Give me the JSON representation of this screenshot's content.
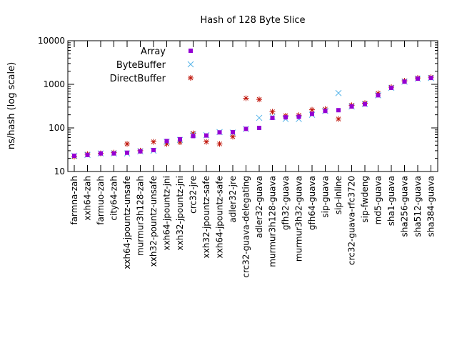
{
  "chart_data": {
    "type": "scatter",
    "title": "Hash of 128 Byte Slice",
    "xlabel": "",
    "ylabel": "ns/hash (log scale)",
    "yscale": "log",
    "ylim": [
      10,
      10000
    ],
    "yticks": [
      "10",
      "100",
      "1000",
      "10000"
    ],
    "grid": false,
    "legend_position": "top-left",
    "categories": [
      "farmna-zah",
      "xxh64-zah",
      "farmuo-zah",
      "city64-zah",
      "xxh64-jpountz-unsafe",
      "murmur3h128-zah",
      "xxh32-pountz-unsafe",
      "xxh64-jpountz-jni",
      "xxh32-jpountz-jni",
      "crc32-jre",
      "xxh32-jpountz-safe",
      "xxh64-jpountz-safe",
      "adler32-jre",
      "crc32-guava-delegating",
      "adler32-guava",
      "murmur3h128-guava",
      "gfh32-guava",
      "murmur3h32-guava",
      "gfh64-guava",
      "sip-guava",
      "sip-inline",
      "crc32-guava-rfc3720",
      "sip-fwdeng",
      "md5-guava",
      "sha1-guava",
      "sha256-guava",
      "sha512-guava",
      "sha384-guava"
    ],
    "series": [
      {
        "name": "Array",
        "marker": "square",
        "color": "#9400d3",
        "values": [
          23,
          24,
          26,
          26,
          27,
          29,
          31,
          50,
          55,
          65,
          67,
          79,
          80,
          95,
          100,
          170,
          175,
          180,
          210,
          245,
          255,
          310,
          350,
          560,
          830,
          1150,
          1350,
          1400
        ]
      },
      {
        "name": "ByteBuffer",
        "marker": "x",
        "color": "#56b4e9",
        "values": [
          23,
          24,
          26,
          26,
          26,
          29,
          30,
          48,
          53,
          70,
          68,
          80,
          78,
          95,
          170,
          180,
          160,
          160,
          200,
          245,
          630,
          310,
          350,
          560,
          830,
          1150,
          1350,
          1400
        ]
      },
      {
        "name": "DirectBuffer",
        "marker": "star",
        "color": "#c0150a",
        "values": [
          22,
          25,
          26,
          27,
          43,
          30,
          48,
          43,
          47,
          75,
          48,
          43,
          63,
          480,
          450,
          235,
          190,
          195,
          260,
          270,
          160,
          330,
          370,
          620,
          860,
          1200,
          1400,
          1450
        ]
      }
    ]
  }
}
